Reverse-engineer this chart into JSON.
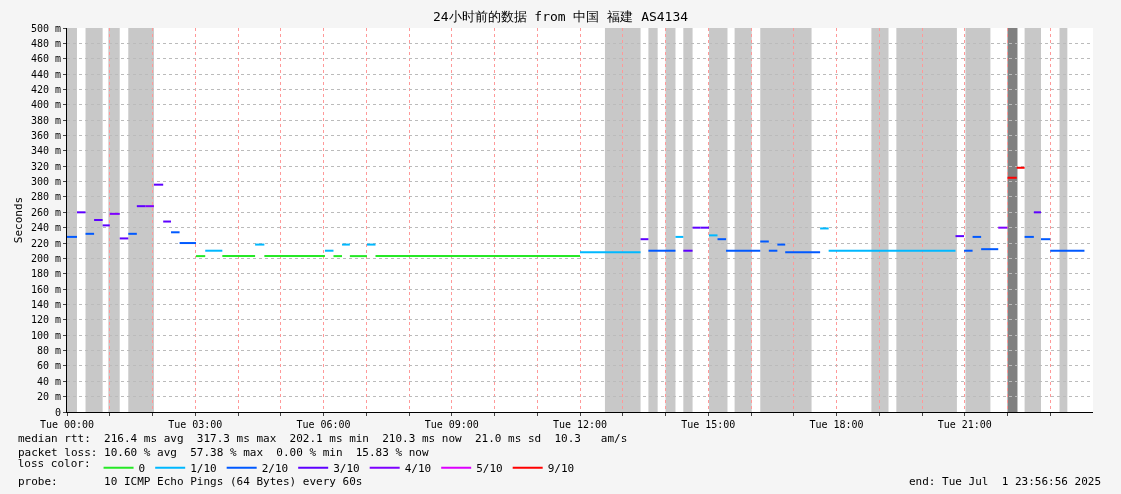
{
  "chart_data": {
    "type": "step",
    "title": "24小时前的数据 from 中国 福建 AS4134",
    "ylabel": "Seconds",
    "legend_title": "loss color:",
    "xlim": [
      "2025-07-01T00:00",
      "2025-07-02T00:00"
    ],
    "xticks": [
      {
        "value": "2025-07-01T00:00",
        "label": "Tue 00:00"
      },
      {
        "value": "2025-07-01T01:00",
        "label": null
      },
      {
        "value": "2025-07-01T02:00",
        "label": null
      },
      {
        "value": "2025-07-01T03:00",
        "label": "Tue 03:00"
      },
      {
        "value": "2025-07-01T04:00",
        "label": null
      },
      {
        "value": "2025-07-01T05:00",
        "label": null
      },
      {
        "value": "2025-07-01T06:00",
        "label": "Tue 06:00"
      },
      {
        "value": "2025-07-01T07:00",
        "label": null
      },
      {
        "value": "2025-07-01T08:00",
        "label": null
      },
      {
        "value": "2025-07-01T09:00",
        "label": "Tue 09:00"
      },
      {
        "value": "2025-07-01T10:00",
        "label": null
      },
      {
        "value": "2025-07-01T11:00",
        "label": null
      },
      {
        "value": "2025-07-01T12:00",
        "label": "Tue 12:00"
      },
      {
        "value": "2025-07-01T13:00",
        "label": null
      },
      {
        "value": "2025-07-01T14:00",
        "label": null
      },
      {
        "value": "2025-07-01T15:00",
        "label": "Tue 15:00"
      },
      {
        "value": "2025-07-01T16:00",
        "label": null
      },
      {
        "value": "2025-07-01T17:00",
        "label": null
      },
      {
        "value": "2025-07-01T18:00",
        "label": "Tue 18:00"
      },
      {
        "value": "2025-07-01T19:00",
        "label": null
      },
      {
        "value": "2025-07-01T20:00",
        "label": null
      },
      {
        "value": "2025-07-01T21:00",
        "label": "Tue 21:00"
      },
      {
        "value": "2025-07-01T22:00",
        "label": null
      },
      {
        "value": "2025-07-01T23:00",
        "label": null
      }
    ],
    "ylim": [
      0,
      500
    ],
    "yticks": [
      0,
      {
        "value": 20,
        "label": "20 m"
      },
      {
        "value": 40,
        "label": "40 m"
      },
      {
        "value": 60,
        "label": "60 m"
      },
      {
        "value": 80,
        "label": "80 m"
      },
      {
        "value": 100,
        "label": "100 m"
      },
      {
        "value": 120,
        "label": "120 m"
      },
      {
        "value": 140,
        "label": "140 m"
      },
      {
        "value": 160,
        "label": "160 m"
      },
      {
        "value": 180,
        "label": "180 m"
      },
      {
        "value": 200,
        "label": "200 m"
      },
      {
        "value": 220,
        "label": "220 m"
      },
      {
        "value": 240,
        "label": "240 m"
      },
      {
        "value": 260,
        "label": "260 m"
      },
      {
        "value": 280,
        "label": "280 m"
      },
      {
        "value": 300,
        "label": "300 m"
      },
      {
        "value": 320,
        "label": "320 m"
      },
      {
        "value": 340,
        "label": "340 m"
      },
      {
        "value": 360,
        "label": "360 m"
      },
      {
        "value": 380,
        "label": "380 m"
      },
      {
        "value": 400,
        "label": "400 m"
      },
      {
        "value": 420,
        "label": "420 m"
      },
      {
        "value": 440,
        "label": "440 m"
      },
      {
        "value": 460,
        "label": "460 m"
      },
      {
        "value": 480,
        "label": "480 m"
      },
      {
        "value": 500,
        "label": "500 m"
      }
    ],
    "grid": true,
    "legend": "bottom",
    "series": [
      {
        "name": "0",
        "color": "#26e826",
        "x": [
          "2025-07-01T03:01",
          "2025-07-01T03:14",
          null,
          "2025-07-01T03:38",
          "2025-07-01T04:24",
          null,
          "2025-07-01T04:37",
          "2025-07-01T06:02",
          null,
          "2025-07-01T06:14",
          "2025-07-01T06:26",
          null,
          "2025-07-01T06:37",
          "2025-07-01T07:01",
          null,
          "2025-07-01T07:13",
          "2025-07-01T12:00"
        ],
        "values": [
          203,
          203,
          null,
          203,
          203,
          null,
          203,
          203,
          null,
          203,
          203,
          null,
          203,
          203,
          null,
          203,
          203
        ]
      },
      {
        "name": "1/10",
        "color": "#00b8ff",
        "x": [
          "2025-07-01T03:14",
          "2025-07-01T03:38",
          null,
          "2025-07-01T04:24",
          "2025-07-01T04:37",
          null,
          "2025-07-01T06:02",
          "2025-07-01T06:14",
          null,
          "2025-07-01T06:26",
          "2025-07-01T06:37",
          null,
          "2025-07-01T07:01",
          "2025-07-01T07:13",
          null,
          "2025-07-01T12:00",
          "2025-07-01T13:25",
          null,
          "2025-07-01T14:14",
          "2025-07-01T14:25",
          null,
          "2025-07-01T15:01",
          "2025-07-01T15:13",
          null,
          "2025-07-01T17:37",
          "2025-07-01T17:49",
          null,
          "2025-07-01T17:49",
          "2025-07-01T20:47"
        ],
        "values": [
          210,
          210,
          null,
          218,
          218,
          null,
          210,
          210,
          null,
          218,
          218,
          null,
          218,
          218,
          null,
          208,
          208,
          null,
          228,
          228,
          null,
          230,
          230,
          null,
          239,
          239,
          null,
          210,
          210
        ]
      },
      {
        "name": "2/10",
        "color": "#0059ff",
        "x": [
          "2025-07-01T00:00",
          "2025-07-01T00:14",
          null,
          "2025-07-01T00:26",
          "2025-07-01T00:38",
          null,
          "2025-07-01T01:26",
          "2025-07-01T01:38",
          null,
          "2025-07-01T02:26",
          "2025-07-01T02:38",
          null,
          "2025-07-01T02:38",
          "2025-07-01T03:01",
          null,
          "2025-07-01T13:36",
          "2025-07-01T14:14",
          null,
          "2025-07-01T15:13",
          "2025-07-01T15:25",
          null,
          "2025-07-01T15:25",
          "2025-07-01T16:13",
          null,
          "2025-07-01T16:13",
          "2025-07-01T16:25",
          null,
          "2025-07-01T16:25",
          "2025-07-01T16:37",
          null,
          "2025-07-01T16:37",
          "2025-07-01T16:48",
          null,
          "2025-07-01T16:48",
          "2025-07-01T17:37",
          null,
          "2025-07-01T20:59",
          "2025-07-01T21:11",
          null,
          "2025-07-01T21:11",
          "2025-07-01T21:23",
          null,
          "2025-07-01T21:23",
          "2025-07-01T21:47",
          null,
          "2025-07-01T22:24",
          "2025-07-01T22:37",
          null,
          "2025-07-01T22:47",
          "2025-07-01T23:00",
          null,
          "2025-07-01T23:00",
          "2025-07-01T23:48"
        ],
        "values": [
          228,
          228,
          null,
          232,
          232,
          null,
          232,
          232,
          null,
          234,
          234,
          null,
          220,
          220,
          null,
          210,
          210,
          null,
          225,
          225,
          null,
          210,
          210,
          null,
          222,
          222,
          null,
          210,
          210,
          null,
          218,
          218,
          null,
          208,
          208,
          null,
          210,
          210,
          null,
          228,
          228,
          null,
          212,
          212,
          null,
          228,
          228,
          null,
          225,
          225,
          null,
          210,
          210
        ]
      },
      {
        "name": "3/10",
        "color": "#5e00ff",
        "x": [
          "2025-07-01T00:14",
          "2025-07-01T00:26",
          null,
          "2025-07-01T00:38",
          "2025-07-01T00:50",
          null,
          "2025-07-01T00:50",
          "2025-07-01T01:00",
          null,
          "2025-07-01T01:14",
          "2025-07-01T01:26",
          null,
          "2025-07-01T01:38",
          "2025-07-01T01:50",
          null,
          "2025-07-01T02:02",
          "2025-07-01T02:15",
          null,
          "2025-07-01T02:15",
          "2025-07-01T02:26",
          null,
          "2025-07-01T13:25",
          "2025-07-01T13:36",
          null,
          "2025-07-01T14:25",
          "2025-07-01T14:38",
          null,
          "2025-07-01T14:38",
          "2025-07-01T14:49",
          null,
          "2025-07-01T14:49",
          "2025-07-01T15:01",
          null,
          "2025-07-01T20:47",
          "2025-07-01T20:59",
          null,
          "2025-07-01T22:37",
          "2025-07-01T22:47"
        ],
        "values": [
          260,
          260,
          null,
          250,
          250,
          null,
          243,
          243,
          null,
          226,
          226,
          null,
          268,
          268,
          null,
          296,
          296,
          null,
          248,
          248,
          null,
          225,
          225,
          null,
          210,
          210,
          null,
          240,
          240,
          null,
          240,
          240,
          null,
          229,
          229,
          null,
          260,
          260
        ]
      },
      {
        "name": "4/10",
        "color": "#7e00ff",
        "x": [
          "2025-07-01T01:00",
          "2025-07-01T01:14",
          null,
          "2025-07-01T01:50",
          "2025-07-01T02:02",
          null,
          "2025-07-01T21:47",
          "2025-07-01T22:00"
        ],
        "values": [
          258,
          258,
          null,
          268,
          268,
          null,
          240,
          240
        ]
      },
      {
        "name": "5/10",
        "color": "#dd00ff"
      },
      {
        "name": "9/10",
        "color": "#ff0000",
        "x": [
          "2025-07-01T22:00",
          "2025-07-01T22:13",
          null,
          "2025-07-01T22:13",
          "2025-07-01T22:24"
        ],
        "values": [
          305,
          305,
          null,
          318,
          318
        ]
      }
    ],
    "bands": [
      {
        "axis": "x",
        "from": "2025-07-01T00:00",
        "to": "2025-07-01T00:14",
        "color": "#c8c8c8"
      },
      {
        "axis": "x",
        "from": "2025-07-01T00:26",
        "to": "2025-07-01T00:50",
        "color": "#c8c8c8"
      },
      {
        "axis": "x",
        "from": "2025-07-01T00:58",
        "to": "2025-07-01T01:14",
        "color": "#c8c8c8"
      },
      {
        "axis": "x",
        "from": "2025-07-01T01:26",
        "to": "2025-07-01T02:02",
        "color": "#c8c8c8"
      },
      {
        "axis": "x",
        "from": "2025-07-01T12:35",
        "to": "2025-07-01T13:25",
        "color": "#c8c8c8"
      },
      {
        "axis": "x",
        "from": "2025-07-01T13:36",
        "to": "2025-07-01T13:49",
        "color": "#c8c8c8"
      },
      {
        "axis": "x",
        "from": "2025-07-01T14:00",
        "to": "2025-07-01T14:14",
        "color": "#c8c8c8"
      },
      {
        "axis": "x",
        "from": "2025-07-01T14:25",
        "to": "2025-07-01T14:38",
        "color": "#c8c8c8"
      },
      {
        "axis": "x",
        "from": "2025-07-01T15:01",
        "to": "2025-07-01T15:27",
        "color": "#c8c8c8"
      },
      {
        "axis": "x",
        "from": "2025-07-01T15:37",
        "to": "2025-07-01T16:01",
        "color": "#c8c8c8"
      },
      {
        "axis": "x",
        "from": "2025-07-01T16:13",
        "to": "2025-07-01T17:25",
        "color": "#c8c8c8"
      },
      {
        "axis": "x",
        "from": "2025-07-01T18:49",
        "to": "2025-07-01T19:13",
        "color": "#c8c8c8"
      },
      {
        "axis": "x",
        "from": "2025-07-01T19:24",
        "to": "2025-07-01T20:49",
        "color": "#c8c8c8"
      },
      {
        "axis": "x",
        "from": "2025-07-01T21:01",
        "to": "2025-07-01T21:36",
        "color": "#c8c8c8"
      },
      {
        "axis": "x",
        "from": "2025-07-01T22:00",
        "to": "2025-07-01T22:14",
        "color": "#808080"
      },
      {
        "axis": "x",
        "from": "2025-07-01T22:24",
        "to": "2025-07-01T22:47",
        "color": "#c8c8c8"
      },
      {
        "axis": "x",
        "from": "2025-07-01T23:13",
        "to": "2025-07-01T23:24",
        "color": "#c8c8c8"
      }
    ],
    "annotations": [
      "median rtt:  216.4 ms avg  317.3 ms max  202.1 ms min  210.3 ms now  21.0 ms sd  10.3   am/s",
      "packet loss: 10.60 % avg  57.38 % max  0.00 % min  15.83 % now",
      "probe:       10 ICMP Echo Pings (64 Bytes) every 60s",
      "end: Tue Jul  1 23:56:56 2025"
    ]
  }
}
